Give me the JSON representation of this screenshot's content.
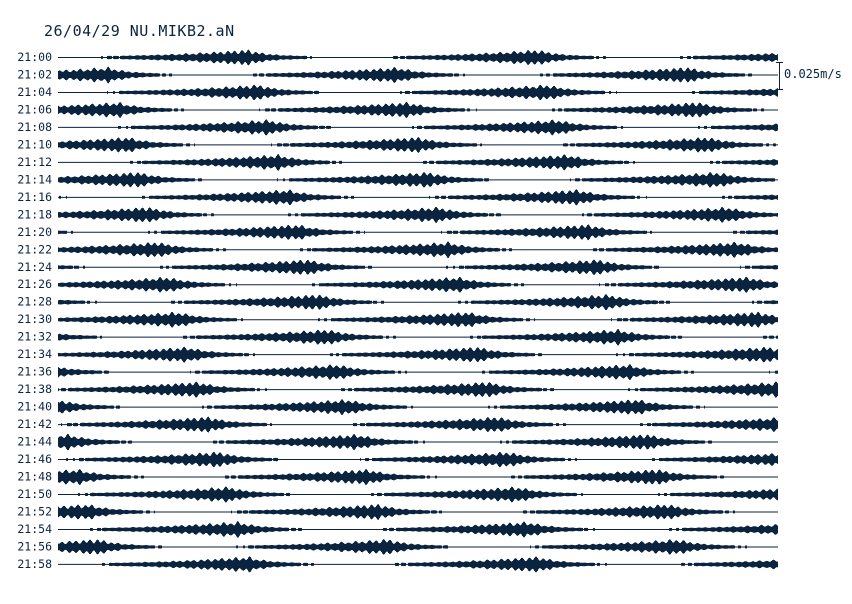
{
  "chart_data": {
    "type": "line",
    "title": "26/04/29 NU.MIKB2.aN",
    "row_labels": [
      "21:00",
      "21:02",
      "21:04",
      "21:06",
      "21:08",
      "21:10",
      "21:12",
      "21:14",
      "21:16",
      "21:18",
      "21:20",
      "21:22",
      "21:24",
      "21:26",
      "21:28",
      "21:30",
      "21:32",
      "21:34",
      "21:36",
      "21:38",
      "21:40",
      "21:42",
      "21:44",
      "21:46",
      "21:48",
      "21:50",
      "21:52",
      "21:54",
      "21:56",
      "21:58"
    ],
    "scale_label": "0.025m/s",
    "trace_color": "#0a2440",
    "grid": false,
    "legend": "none"
  }
}
